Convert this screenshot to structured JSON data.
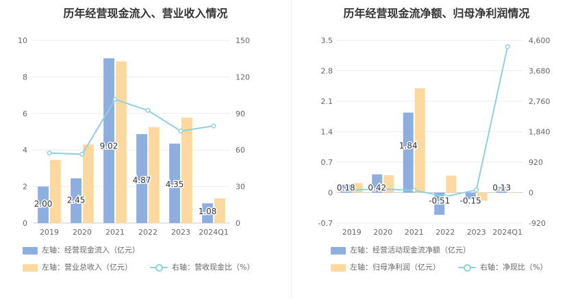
{
  "colors": {
    "blue": "#8eaedf",
    "orange": "#fdd9a0",
    "teal": "#8fd1d7"
  },
  "chart_data": [
    {
      "type": "bar",
      "title": "历年经营现金流入、营业收入情况",
      "categories": [
        "2019",
        "2020",
        "2021",
        "2022",
        "2023",
        "2024Q1"
      ],
      "left_ylim": [
        0,
        10
      ],
      "left_ticks": [
        "0",
        "2",
        "4",
        "6",
        "8",
        "10"
      ],
      "right_ylim": [
        0,
        150
      ],
      "right_ticks": [
        "0",
        "30",
        "60",
        "90",
        "120",
        "150"
      ],
      "series": [
        {
          "name": "左轴：经营现金流入（亿元）",
          "axis": "left",
          "kind": "bar",
          "values": [
            2.0,
            2.45,
            9.02,
            4.87,
            4.35,
            1.08
          ],
          "labels": [
            "2.00",
            "2.45",
            "9.02",
            "4.87",
            "4.35",
            "1.08"
          ]
        },
        {
          "name": "左轴：营业总收入（亿元）",
          "axis": "left",
          "kind": "bar",
          "values": [
            3.45,
            4.3,
            8.85,
            5.25,
            5.78,
            1.35
          ]
        },
        {
          "name": "右轴：营收现金比（%）",
          "axis": "right",
          "kind": "line",
          "values": [
            57.5,
            56.5,
            101.5,
            92.5,
            75.5,
            79.8
          ]
        }
      ],
      "grid": true,
      "legend": "bottom"
    },
    {
      "type": "bar",
      "title": "历年经营现金流净额、归母净利润情况",
      "categories": [
        "2019",
        "2020",
        "2021",
        "2022",
        "2023",
        "2024Q1"
      ],
      "left_ylim": [
        -0.7,
        3.5
      ],
      "left_ticks": [
        "-0.7",
        "0",
        "0.7",
        "1.4",
        "2.1",
        "2.8",
        "3.5"
      ],
      "right_ylim": [
        -920,
        4600
      ],
      "right_ticks": [
        "-920",
        "0",
        "920",
        "1,840",
        "2,760",
        "3,680",
        "4,600"
      ],
      "series": [
        {
          "name": "左轴：经营活动现金流净额（亿元）",
          "axis": "left",
          "kind": "bar",
          "values": [
            0.18,
            0.42,
            1.84,
            -0.51,
            -0.15,
            0.13
          ],
          "labels": [
            "0.18",
            "0.42",
            "1.84",
            "-0.51",
            "-0.15",
            "0.13"
          ]
        },
        {
          "name": "左轴：归母净利润（亿元）",
          "axis": "left",
          "kind": "bar",
          "values": [
            0.22,
            0.4,
            2.4,
            0.39,
            -0.19,
            0.0
          ]
        },
        {
          "name": "右轴：净现比（%）",
          "axis": "right",
          "kind": "line",
          "values": [
            81,
            105,
            72,
            -120,
            80,
            4410
          ]
        }
      ],
      "grid": true,
      "legend": "bottom"
    }
  ]
}
